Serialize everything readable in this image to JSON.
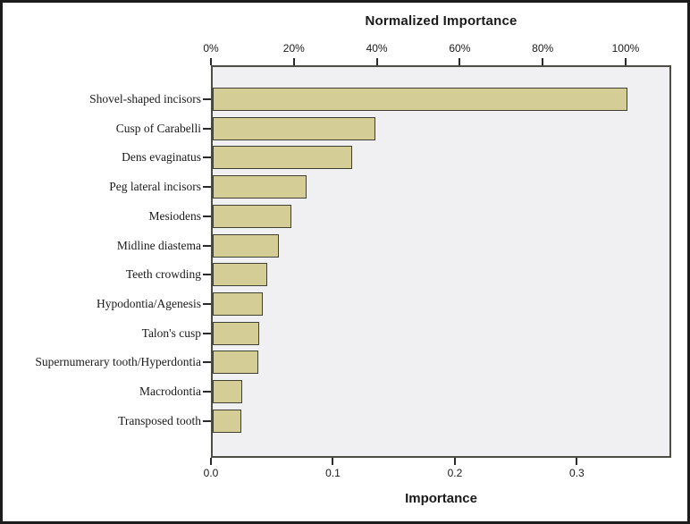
{
  "chart_data": {
    "type": "bar",
    "orientation": "horizontal",
    "title": "Normalized Importance",
    "xlabel": "Importance",
    "grid": false,
    "legend": false,
    "categories": [
      "Shovel-shaped incisors",
      "Cusp of Carabelli",
      "Dens evaginatus",
      "Peg lateral incisors",
      "Mesiodens",
      "Midline diastema",
      "Teeth crowding",
      "Hypodontia/Agenesis",
      "Talon's cusp",
      "Supernumerary tooth/Hyperdontia",
      "Macrodontia",
      "Transposed tooth"
    ],
    "series": [
      {
        "name": "Normalized Importance (%)",
        "values": [
          100,
          39.3,
          33.7,
          22.7,
          19.0,
          16.0,
          13.2,
          12.1,
          11.2,
          11.0,
          7.1,
          6.9
        ]
      },
      {
        "name": "Importance",
        "values": [
          0.34,
          0.134,
          0.115,
          0.077,
          0.065,
          0.054,
          0.045,
          0.041,
          0.038,
          0.037,
          0.024,
          0.023
        ]
      }
    ],
    "top_axis": {
      "label": "Normalized Importance",
      "tick_labels": [
        "0%",
        "20%",
        "40%",
        "60%",
        "80%",
        "100%"
      ],
      "tick_values": [
        0,
        20,
        40,
        60,
        80,
        100
      ],
      "range_pct": [
        0,
        111
      ]
    },
    "bottom_axis": {
      "label": "Importance",
      "tick_labels": [
        "0.0",
        "0.1",
        "0.2",
        "0.3"
      ],
      "tick_values": [
        0,
        0.1,
        0.2,
        0.3
      ],
      "range": [
        0,
        0.377
      ]
    },
    "colors": {
      "bar_fill": "#d5cd96",
      "bar_border": "#3f3f33",
      "plot_bg": "#f0eff1",
      "plot_border": "#4d4d46",
      "text": "#1a1a1a",
      "frame_border": "#1c1c1c"
    }
  }
}
